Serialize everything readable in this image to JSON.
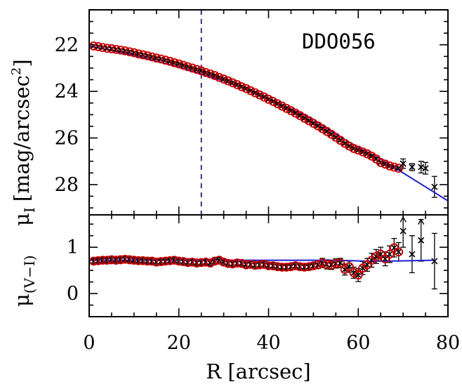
{
  "chart_data": [
    {
      "type": "scatter",
      "panel": "top",
      "annotation": "DDO056",
      "ylabel_symbol": "μ",
      "ylabel_subscript": "I",
      "ylabel_units": "[mag/arcsec",
      "ylabel_units_sup": "2",
      "ylabel_units_close": "]",
      "xlim": [
        0,
        80
      ],
      "ylim": [
        29.3,
        20.5
      ],
      "y_inverted": true,
      "yticks": [
        22,
        24,
        26,
        28
      ],
      "y_minor_step": 0.5,
      "x_minor_step": 5,
      "vline_x": 25,
      "vline_color": "#00008b",
      "fit_color": "#1f1fd0",
      "marker_color": "#cc0000",
      "fit_line": {
        "x": [
          0,
          10,
          20,
          30,
          40,
          50,
          56,
          60,
          65,
          70,
          75,
          80
        ],
        "y": [
          22.05,
          22.45,
          22.95,
          23.55,
          24.3,
          25.2,
          25.95,
          26.4,
          26.9,
          27.5,
          28.1,
          28.7
        ]
      },
      "series": [
        {
          "marker": "circle+x",
          "x": [
            1,
            2,
            3,
            4,
            5,
            6,
            7,
            8,
            9,
            10,
            11,
            12,
            13,
            14,
            15,
            16,
            17,
            18,
            19,
            20,
            21,
            22,
            23,
            24,
            25,
            26,
            27,
            28,
            29,
            30,
            31,
            32,
            33,
            34,
            35,
            36,
            37,
            38,
            39,
            40,
            41,
            42,
            43,
            44,
            45,
            46,
            47,
            48,
            49,
            50,
            51,
            52,
            53,
            54,
            55,
            56,
            57,
            58,
            59,
            60,
            61,
            62,
            63,
            64,
            65,
            66,
            67,
            68,
            69
          ],
          "y": [
            22.05,
            22.08,
            22.12,
            22.15,
            22.17,
            22.2,
            22.23,
            22.26,
            22.3,
            22.34,
            22.39,
            22.43,
            22.47,
            22.52,
            22.57,
            22.61,
            22.66,
            22.71,
            22.77,
            22.82,
            22.88,
            22.94,
            23.0,
            23.06,
            23.12,
            23.19,
            23.25,
            23.32,
            23.4,
            23.47,
            23.55,
            23.63,
            23.71,
            23.8,
            23.88,
            23.97,
            24.06,
            24.15,
            24.24,
            24.34,
            24.43,
            24.53,
            24.63,
            24.73,
            24.83,
            24.93,
            25.04,
            25.15,
            25.26,
            25.37,
            25.48,
            25.6,
            25.72,
            25.84,
            25.97,
            26.1,
            26.23,
            26.35,
            26.45,
            26.52,
            26.6,
            26.68,
            26.78,
            26.9,
            27.05,
            27.12,
            27.2,
            27.25,
            27.3
          ],
          "yerr": 0.05
        },
        {
          "marker": "x",
          "x": [
            70,
            72,
            74,
            75,
            77
          ],
          "y": [
            27.1,
            27.25,
            27.25,
            27.3,
            28.1
          ],
          "yerr": [
            0.2,
            0.15,
            0.25,
            0.25,
            0.45
          ]
        }
      ]
    },
    {
      "type": "scatter",
      "panel": "bottom",
      "ylabel_symbol": "μ",
      "ylabel_subscript": "(V−I)",
      "xlabel": "R [arcsec]",
      "xlim": [
        0,
        80
      ],
      "ylim": [
        -0.5,
        1.7
      ],
      "yticks": [
        0,
        1
      ],
      "y_minor_step": 0.25,
      "xticks": [
        0,
        20,
        40,
        60,
        80
      ],
      "x_minor_step": 5,
      "fit_color": "#1f1fd0",
      "marker_color": "#cc0000",
      "fit_line": {
        "x": [
          0,
          55,
          62,
          67,
          77
        ],
        "y": [
          0.72,
          0.72,
          0.7,
          0.7,
          0.72
        ]
      },
      "series": [
        {
          "marker": "circle+x",
          "x": [
            1,
            2,
            3,
            4,
            5,
            6,
            7,
            8,
            9,
            10,
            11,
            12,
            13,
            14,
            15,
            16,
            17,
            18,
            19,
            20,
            21,
            22,
            23,
            24,
            25,
            26,
            27,
            28,
            29,
            30,
            31,
            32,
            33,
            34,
            35,
            36,
            37,
            38,
            39,
            40,
            41,
            42,
            43,
            44,
            45,
            46,
            47,
            48,
            49,
            50,
            51,
            52,
            53,
            54,
            55,
            56,
            57,
            58,
            59,
            60,
            61,
            62,
            63,
            64,
            65,
            66,
            67,
            68,
            69
          ],
          "y": [
            0.7,
            0.71,
            0.72,
            0.72,
            0.73,
            0.72,
            0.73,
            0.74,
            0.73,
            0.72,
            0.71,
            0.71,
            0.7,
            0.7,
            0.68,
            0.69,
            0.7,
            0.71,
            0.72,
            0.7,
            0.69,
            0.67,
            0.68,
            0.66,
            0.67,
            0.68,
            0.66,
            0.7,
            0.72,
            0.68,
            0.65,
            0.64,
            0.66,
            0.65,
            0.62,
            0.63,
            0.61,
            0.62,
            0.63,
            0.6,
            0.6,
            0.58,
            0.57,
            0.57,
            0.58,
            0.6,
            0.58,
            0.57,
            0.58,
            0.6,
            0.62,
            0.66,
            0.63,
            0.62,
            0.65,
            0.66,
            0.52,
            0.58,
            0.45,
            0.4,
            0.55,
            0.62,
            0.72,
            0.8,
            0.85,
            0.75,
            0.85,
            0.99,
            0.9
          ],
          "yerr": [
            0.06,
            0.06,
            0.06,
            0.06,
            0.06,
            0.06,
            0.06,
            0.06,
            0.06,
            0.06,
            0.06,
            0.06,
            0.06,
            0.06,
            0.06,
            0.06,
            0.06,
            0.06,
            0.06,
            0.06,
            0.06,
            0.06,
            0.06,
            0.06,
            0.06,
            0.06,
            0.06,
            0.06,
            0.06,
            0.06,
            0.06,
            0.06,
            0.06,
            0.06,
            0.06,
            0.06,
            0.06,
            0.06,
            0.06,
            0.06,
            0.06,
            0.06,
            0.06,
            0.06,
            0.06,
            0.06,
            0.06,
            0.06,
            0.06,
            0.06,
            0.08,
            0.1,
            0.1,
            0.1,
            0.1,
            0.1,
            0.12,
            0.12,
            0.12,
            0.14,
            0.14,
            0.14,
            0.15,
            0.15,
            0.15,
            0.15,
            0.18,
            0.2,
            0.2
          ]
        },
        {
          "marker": "x",
          "x": [
            70,
            72,
            74,
            77
          ],
          "y": [
            1.35,
            0.85,
            1.15,
            0.7
          ],
          "yerr": [
            0.35,
            0.4,
            0.45,
            0.6
          ]
        }
      ]
    }
  ]
}
